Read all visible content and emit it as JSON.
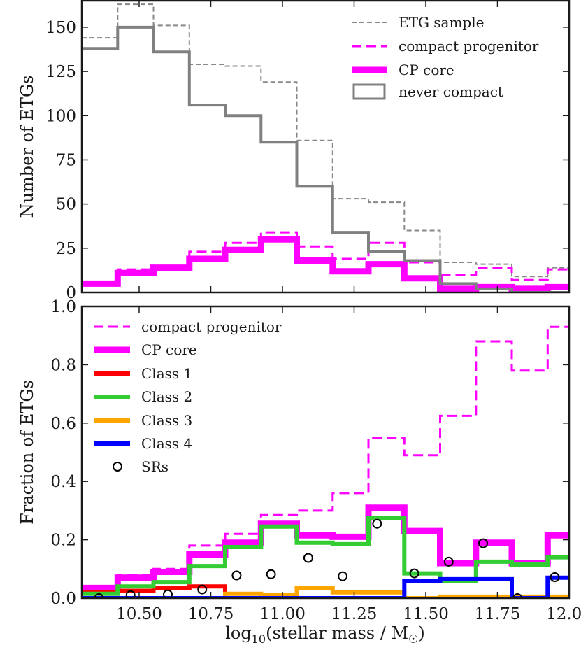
{
  "chart_data": [
    {
      "type": "histogram",
      "ylabel": "Number of ETGs",
      "xlabel": "",
      "xlim": [
        10.3,
        12.0
      ],
      "ylim": [
        0,
        165
      ],
      "yticks": [
        0,
        25,
        50,
        75,
        100,
        125,
        150
      ],
      "ytick_labels": [
        "0",
        "25",
        "50",
        "75",
        "100",
        "125",
        "150"
      ],
      "bin_edges": [
        10.3,
        10.425,
        10.55,
        10.675,
        10.8,
        10.925,
        11.05,
        11.175,
        11.3,
        11.425,
        11.55,
        11.675,
        11.8,
        11.925,
        12.05
      ],
      "series": [
        {
          "name": "ETG sample",
          "style": "thin-dash",
          "color": "#888888",
          "values": [
            144,
            163,
            151,
            129,
            128,
            119,
            86,
            53,
            51,
            35,
            17,
            16,
            9,
            14
          ]
        },
        {
          "name": "compact progenitor",
          "style": "dash",
          "color": "#ff00ff",
          "values": [
            5,
            13,
            15,
            23,
            28,
            34,
            26,
            19,
            28,
            17,
            10,
            14,
            7,
            13
          ]
        },
        {
          "name": "CP core",
          "style": "thick",
          "color": "#ff00ff",
          "values": [
            5,
            11,
            14,
            19,
            24,
            30,
            18,
            12,
            16,
            8,
            2,
            3,
            2,
            3
          ]
        },
        {
          "name": "never compact",
          "style": "solid",
          "color": "#808080",
          "values": [
            138,
            150,
            136,
            106,
            100,
            85,
            60,
            34,
            23,
            18,
            5,
            2,
            0,
            0
          ]
        }
      ],
      "legend": [
        "ETG sample",
        "compact progenitor",
        "CP core",
        "never compact"
      ],
      "legend_loc": "upper right"
    },
    {
      "type": "histogram",
      "ylabel": "Fraction of ETGs",
      "xlabel": "log10(stellar mass / M☉)",
      "xlim": [
        10.3,
        12.0
      ],
      "ylim": [
        0,
        1.0
      ],
      "yticks": [
        0.0,
        0.2,
        0.4,
        0.6,
        0.8,
        1.0
      ],
      "ytick_labels": [
        "0.0",
        "0.2",
        "0.4",
        "0.6",
        "0.8",
        "1.0"
      ],
      "xticks": [
        10.5,
        10.75,
        11.0,
        11.25,
        11.5,
        11.75,
        12.0
      ],
      "xtick_labels": [
        "10.50",
        "10.75",
        "11.00",
        "11.25",
        "11.50",
        "11.75",
        "12.00"
      ],
      "bin_edges": [
        10.3,
        10.425,
        10.55,
        10.675,
        10.8,
        10.925,
        11.05,
        11.175,
        11.3,
        11.425,
        11.55,
        11.675,
        11.8,
        11.925,
        12.05
      ],
      "series": [
        {
          "name": "compact progenitor",
          "style": "dash",
          "color": "#ff00ff",
          "values": [
            0.035,
            0.08,
            0.1,
            0.18,
            0.22,
            0.285,
            0.3,
            0.36,
            0.55,
            0.49,
            0.625,
            0.88,
            0.78,
            0.93
          ]
        },
        {
          "name": "CP core",
          "style": "thick",
          "color": "#ff00ff",
          "values": [
            0.035,
            0.07,
            0.09,
            0.15,
            0.19,
            0.255,
            0.215,
            0.21,
            0.31,
            0.23,
            0.12,
            0.19,
            0.12,
            0.215
          ]
        },
        {
          "name": "Class 1",
          "style": "class",
          "color": "#ff0000",
          "values": [
            0.02,
            0.025,
            0.035,
            0.04,
            0.0,
            0.0,
            0.0,
            0.0,
            0.0,
            0.0,
            0.0,
            0.0,
            0.0,
            0.0
          ]
        },
        {
          "name": "Class 2",
          "style": "class",
          "color": "#33cc33",
          "values": [
            0.015,
            0.04,
            0.055,
            0.11,
            0.175,
            0.245,
            0.19,
            0.185,
            0.275,
            0.085,
            0.06,
            0.125,
            0.115,
            0.14
          ]
        },
        {
          "name": "Class 3",
          "style": "class",
          "color": "#ffa500",
          "values": [
            0.0,
            0.0,
            0.0,
            0.0,
            0.015,
            0.01,
            0.035,
            0.02,
            0.02,
            0.0,
            0.005,
            0.005,
            0.005,
            0.005
          ]
        },
        {
          "name": "Class 4",
          "style": "class",
          "color": "#0000ff",
          "values": [
            0.0,
            0.0,
            0.0,
            0.0,
            0.0,
            0.0,
            0.0,
            0.0,
            0.0,
            0.06,
            0.065,
            0.065,
            0.0,
            0.07
          ]
        }
      ],
      "scatter": {
        "name": "SRs",
        "color": "#000000",
        "x": [
          10.36,
          10.47,
          10.6,
          10.72,
          10.84,
          10.96,
          11.09,
          11.21,
          11.33,
          11.46,
          11.58,
          11.7,
          11.82,
          11.95
        ],
        "y": [
          0.0,
          0.01,
          0.013,
          0.03,
          0.078,
          0.082,
          0.138,
          0.075,
          0.255,
          0.085,
          0.125,
          0.188,
          0.0,
          0.072
        ]
      },
      "legend": [
        "compact progenitor",
        "CP core",
        "Class 1",
        "Class 2",
        "Class 3",
        "Class 4",
        "SRs"
      ],
      "legend_loc": "upper left"
    }
  ]
}
